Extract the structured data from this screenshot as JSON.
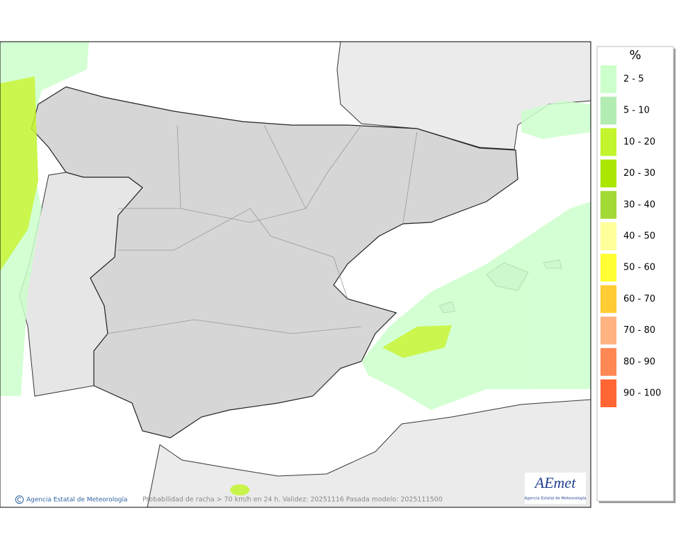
{
  "legend": {
    "title": "%",
    "items": [
      {
        "label": "2 - 5",
        "color": "#ccffcc"
      },
      {
        "label": "5 - 10",
        "color": "#b3ecb3"
      },
      {
        "label": "10 - 20",
        "color": "#c2f52e"
      },
      {
        "label": "20 - 30",
        "color": "#aae600"
      },
      {
        "label": "30 - 40",
        "color": "#a3d936"
      },
      {
        "label": "40 - 50",
        "color": "#ffff99"
      },
      {
        "label": "50 - 60",
        "color": "#ffff33"
      },
      {
        "label": "60 - 70",
        "color": "#ffcc33"
      },
      {
        "label": "70 - 80",
        "color": "#ffb380"
      },
      {
        "label": "80 - 90",
        "color": "#ff8855"
      },
      {
        "label": "90 - 100",
        "color": "#ff6633"
      }
    ]
  },
  "footer": {
    "credit": "Agencia Estatal de Meteorología",
    "caption": "Probabilidad de racha > 70 km/h en 24 h. Validez: 20251116 Pasada modelo: 2025111500"
  },
  "logo": {
    "text": "AEmet",
    "subtitle": "Agencia Estatal de Meteorología"
  }
}
